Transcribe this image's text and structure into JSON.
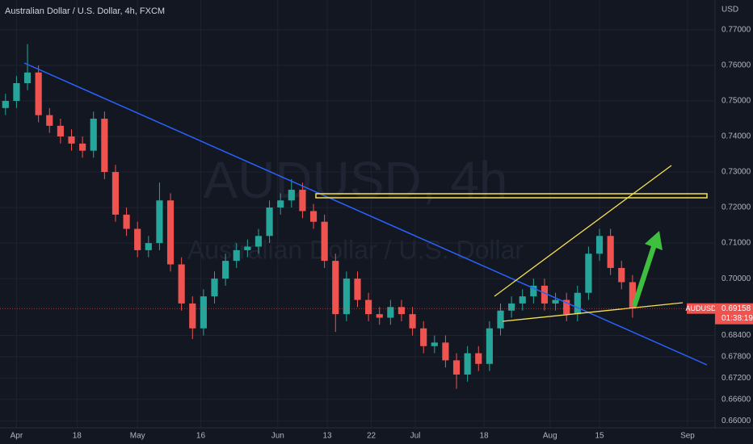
{
  "chart_data": {
    "type": "candlestick",
    "title": "Australian Dollar / U.S. Dollar, 4h, FXCM",
    "watermark_symbol": "AUDUSD, 4h",
    "watermark_name": "Australian Dollar / U.S. Dollar",
    "currency": "USD",
    "symbol": "AUDUSD",
    "last_price": {
      "value": 0.69158,
      "label": "0.69158"
    },
    "countdown": "01:38:19",
    "up_color": "#26a69a",
    "down_color": "#ef5350",
    "grid": true,
    "xlim": [
      -3,
      127
    ],
    "ylim": [
      0.658,
      0.7784
    ],
    "xticks": [
      {
        "value": 0,
        "label": "Apr"
      },
      {
        "value": 11,
        "label": "18"
      },
      {
        "value": 22,
        "label": "May"
      },
      {
        "value": 33.5,
        "label": "16"
      },
      {
        "value": 47.5,
        "label": "Jun"
      },
      {
        "value": 56.5,
        "label": "13"
      },
      {
        "value": 64.5,
        "label": "22"
      },
      {
        "value": 72.5,
        "label": "Jul"
      },
      {
        "value": 85,
        "label": "18"
      },
      {
        "value": 97,
        "label": "Aug"
      },
      {
        "value": 106,
        "label": "15"
      },
      {
        "value": 122,
        "label": "Sep"
      }
    ],
    "yticks": [
      {
        "value": 0.77,
        "label": "0.77000"
      },
      {
        "value": 0.76,
        "label": "0.76000"
      },
      {
        "value": 0.75,
        "label": "0.75000"
      },
      {
        "value": 0.74,
        "label": "0.74000"
      },
      {
        "value": 0.73,
        "label": "0.73000"
      },
      {
        "value": 0.72,
        "label": "0.72000"
      },
      {
        "value": 0.71,
        "label": "0.71000"
      },
      {
        "value": 0.7,
        "label": "0.70000"
      },
      {
        "value": 0.684,
        "label": "0.68400"
      },
      {
        "value": 0.678,
        "label": "0.67800"
      },
      {
        "value": 0.672,
        "label": "0.67200"
      },
      {
        "value": 0.666,
        "label": "0.66600"
      },
      {
        "value": 0.66,
        "label": "0.66000"
      }
    ],
    "x": [
      -2,
      0,
      2,
      4,
      6,
      8,
      10,
      12,
      14,
      16,
      18,
      20,
      22,
      24,
      26,
      28,
      30,
      32,
      34,
      36,
      38,
      40,
      42,
      44,
      46,
      48,
      50,
      52,
      54,
      56,
      58,
      60,
      62,
      64,
      66,
      68,
      70,
      72,
      74,
      76,
      78,
      80,
      82,
      84,
      86,
      88,
      90,
      92,
      94,
      96,
      98,
      100,
      102,
      104,
      106,
      108,
      110,
      112
    ],
    "open": [
      0.748,
      0.75,
      0.755,
      0.758,
      0.746,
      0.743,
      0.74,
      0.738,
      0.736,
      0.745,
      0.73,
      0.718,
      0.714,
      0.708,
      0.71,
      0.722,
      0.704,
      0.693,
      0.686,
      0.695,
      0.7,
      0.705,
      0.708,
      0.709,
      0.712,
      0.72,
      0.722,
      0.725,
      0.719,
      0.716,
      0.705,
      0.69,
      0.7,
      0.694,
      0.69,
      0.689,
      0.692,
      0.69,
      0.686,
      0.681,
      0.682,
      0.677,
      0.673,
      0.679,
      0.676,
      0.686,
      0.691,
      0.693,
      0.695,
      0.698,
      0.693,
      0.694,
      0.69,
      0.696,
      0.707,
      0.712,
      0.703,
      0.699
    ],
    "high": [
      0.752,
      0.757,
      0.766,
      0.76,
      0.748,
      0.745,
      0.742,
      0.74,
      0.747,
      0.747,
      0.732,
      0.72,
      0.716,
      0.712,
      0.727,
      0.724,
      0.706,
      0.695,
      0.697,
      0.702,
      0.707,
      0.71,
      0.711,
      0.714,
      0.722,
      0.724,
      0.728,
      0.727,
      0.721,
      0.718,
      0.707,
      0.702,
      0.702,
      0.696,
      0.692,
      0.694,
      0.694,
      0.692,
      0.688,
      0.684,
      0.684,
      0.679,
      0.681,
      0.681,
      0.688,
      0.693,
      0.695,
      0.697,
      0.7,
      0.7,
      0.696,
      0.696,
      0.698,
      0.709,
      0.714,
      0.714,
      0.705,
      0.701
    ],
    "low": [
      0.746,
      0.748,
      0.753,
      0.744,
      0.741,
      0.738,
      0.736,
      0.734,
      0.734,
      0.728,
      0.716,
      0.712,
      0.706,
      0.706,
      0.708,
      0.702,
      0.691,
      0.683,
      0.684,
      0.693,
      0.698,
      0.703,
      0.706,
      0.707,
      0.71,
      0.718,
      0.72,
      0.717,
      0.714,
      0.703,
      0.685,
      0.688,
      0.692,
      0.688,
      0.687,
      0.687,
      0.688,
      0.684,
      0.679,
      0.679,
      0.675,
      0.669,
      0.671,
      0.674,
      0.674,
      0.684,
      0.689,
      0.691,
      0.693,
      0.691,
      0.691,
      0.688,
      0.688,
      0.694,
      0.705,
      0.701,
      0.697,
      0.689
    ],
    "close": [
      0.75,
      0.755,
      0.758,
      0.746,
      0.743,
      0.74,
      0.738,
      0.736,
      0.745,
      0.73,
      0.718,
      0.714,
      0.708,
      0.71,
      0.722,
      0.704,
      0.693,
      0.686,
      0.695,
      0.7,
      0.705,
      0.708,
      0.709,
      0.712,
      0.72,
      0.722,
      0.725,
      0.719,
      0.716,
      0.705,
      0.69,
      0.7,
      0.694,
      0.69,
      0.689,
      0.692,
      0.69,
      0.686,
      0.681,
      0.682,
      0.677,
      0.673,
      0.679,
      0.676,
      0.686,
      0.691,
      0.693,
      0.695,
      0.698,
      0.693,
      0.694,
      0.69,
      0.696,
      0.707,
      0.712,
      0.703,
      0.699,
      0.6916
    ]
  }
}
